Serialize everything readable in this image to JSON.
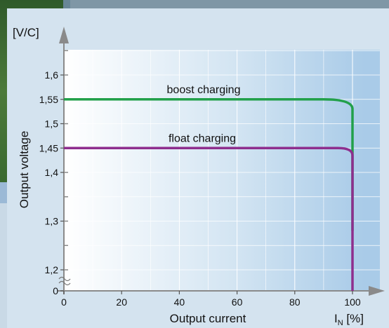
{
  "chart_data": {
    "type": "line",
    "y_unit_label": "[V/C]",
    "ylabel": "Output voltage",
    "xlabel": "Output current",
    "x_unit_main": "I",
    "x_unit_sub": "N",
    "x_unit_suffix": " [%]",
    "x_ticks": [
      "0",
      "20",
      "40",
      "60",
      "80",
      "100"
    ],
    "y_ticks": [
      {
        "v": 1.0,
        "label": "0"
      },
      {
        "v": 1.2,
        "label": "1,2"
      },
      {
        "v": 1.3,
        "label": "1,3"
      },
      {
        "v": 1.4,
        "label": "1,4"
      },
      {
        "v": 1.45,
        "label": "1,45"
      },
      {
        "v": 1.5,
        "label": "1,5"
      },
      {
        "v": 1.55,
        "label": "1,55"
      },
      {
        "v": 1.6,
        "label": "1,6"
      }
    ],
    "xlim": [
      0,
      100
    ],
    "ylim": [
      1.0,
      1.7
    ],
    "y_axis_break": true,
    "series": [
      {
        "name": "boost charging",
        "color": "#22a04a",
        "x": [
          0,
          90,
          98,
          100,
          100
        ],
        "y": [
          1.55,
          1.55,
          1.548,
          1.53,
          1.28
        ]
      },
      {
        "name": "float charging",
        "color": "#8e2e8e",
        "x": [
          0,
          95,
          99,
          100,
          100
        ],
        "y": [
          1.45,
          1.45,
          1.448,
          1.435,
          1.0
        ]
      }
    ]
  }
}
